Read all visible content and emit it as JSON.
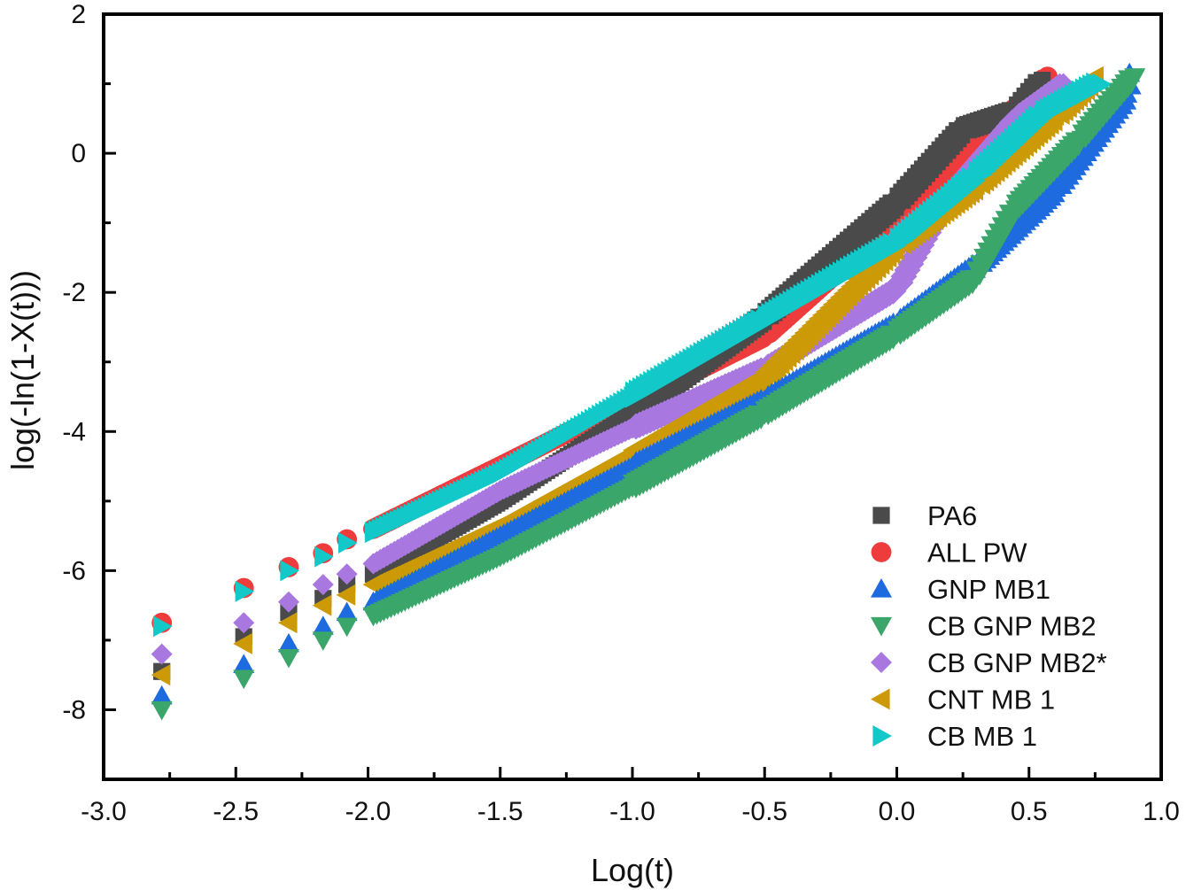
{
  "chart_data": {
    "type": "scatter",
    "title": "",
    "xlabel": "Log(t)",
    "ylabel": "log(-ln(1-X(t)))",
    "xlim": [
      -3.0,
      1.0
    ],
    "ylim": [
      -9.0,
      2.0
    ],
    "x_ticks": [
      -3.0,
      -2.5,
      -2.0,
      -1.5,
      -1.0,
      -0.5,
      0.0,
      0.5,
      1.0
    ],
    "x_tick_labels": [
      "-3.0",
      "-2.5",
      "-2.0",
      "-1.5",
      "-1.0",
      "-0.5",
      "0.0",
      "0.5",
      "1.0"
    ],
    "y_ticks": [
      2,
      0,
      -2,
      -4,
      -6,
      -8
    ],
    "y_tick_labels": [
      "2",
      "0",
      "-2",
      "-4",
      "-6",
      "-8"
    ],
    "grid": false,
    "legend_position": "bottom-right",
    "series": [
      {
        "name": "PA6",
        "marker": "square",
        "color": "#4a4a4a",
        "points": [
          [
            -2.78,
            -7.45
          ],
          [
            -2.47,
            -6.95
          ],
          [
            -2.3,
            -6.6
          ],
          [
            -2.17,
            -6.4
          ],
          [
            -2.08,
            -6.2
          ],
          [
            -1.98,
            -6.05
          ],
          [
            -1.5,
            -5.0
          ],
          [
            -1.0,
            -3.75
          ],
          [
            -0.5,
            -2.35
          ],
          [
            0.0,
            -0.7
          ],
          [
            0.25,
            0.35
          ],
          [
            0.45,
            0.6
          ],
          [
            0.55,
            1.05
          ]
        ]
      },
      {
        "name": "ALL PW",
        "marker": "circle",
        "color": "#ee3b3b",
        "points": [
          [
            -2.78,
            -6.75
          ],
          [
            -2.47,
            -6.25
          ],
          [
            -2.3,
            -5.95
          ],
          [
            -2.17,
            -5.75
          ],
          [
            -2.08,
            -5.55
          ],
          [
            -1.98,
            -5.4
          ],
          [
            -1.5,
            -4.5
          ],
          [
            -1.0,
            -3.55
          ],
          [
            -0.5,
            -2.6
          ],
          [
            0.0,
            -0.9
          ],
          [
            0.3,
            0.2
          ],
          [
            0.5,
            0.75
          ],
          [
            0.57,
            1.1
          ]
        ]
      },
      {
        "name": "GNP MB1",
        "marker": "triangle-up",
        "color": "#1e6be0",
        "points": [
          [
            -2.78,
            -7.8
          ],
          [
            -2.47,
            -7.35
          ],
          [
            -2.3,
            -7.05
          ],
          [
            -2.17,
            -6.8
          ],
          [
            -2.08,
            -6.6
          ],
          [
            -1.98,
            -6.45
          ],
          [
            -1.5,
            -5.5
          ],
          [
            -1.0,
            -4.5
          ],
          [
            -0.5,
            -3.55
          ],
          [
            0.0,
            -2.45
          ],
          [
            0.3,
            -1.6
          ],
          [
            0.6,
            -0.5
          ],
          [
            0.87,
            0.85
          ],
          [
            0.88,
            1.15
          ]
        ]
      },
      {
        "name": "CB GNP MB2",
        "marker": "triangle-down",
        "color": "#3aa66a",
        "points": [
          [
            -2.78,
            -8.0
          ],
          [
            -2.47,
            -7.55
          ],
          [
            -2.3,
            -7.25
          ],
          [
            -2.17,
            -7.0
          ],
          [
            -2.08,
            -6.8
          ],
          [
            -1.98,
            -6.65
          ],
          [
            -1.5,
            -5.8
          ],
          [
            -1.0,
            -4.8
          ],
          [
            -0.5,
            -3.75
          ],
          [
            0.0,
            -2.6
          ],
          [
            0.3,
            -1.8
          ],
          [
            0.45,
            -0.8
          ],
          [
            0.7,
            0.2
          ],
          [
            0.9,
            1.1
          ]
        ]
      },
      {
        "name": "CB GNP MB2*",
        "marker": "diamond",
        "color": "#a877e0",
        "points": [
          [
            -2.78,
            -7.2
          ],
          [
            -2.47,
            -6.75
          ],
          [
            -2.3,
            -6.45
          ],
          [
            -2.17,
            -6.2
          ],
          [
            -2.08,
            -6.05
          ],
          [
            -1.98,
            -5.9
          ],
          [
            -1.5,
            -4.85
          ],
          [
            -1.0,
            -3.95
          ],
          [
            -0.5,
            -3.1
          ],
          [
            0.0,
            -1.95
          ],
          [
            0.2,
            -0.6
          ],
          [
            0.45,
            0.5
          ],
          [
            0.63,
            1.0
          ]
        ]
      },
      {
        "name": "CNT MB 1",
        "marker": "triangle-left",
        "color": "#cc9a06",
        "points": [
          [
            -2.78,
            -7.5
          ],
          [
            -2.47,
            -7.05
          ],
          [
            -2.3,
            -6.75
          ],
          [
            -2.17,
            -6.5
          ],
          [
            -2.08,
            -6.35
          ],
          [
            -1.98,
            -6.2
          ],
          [
            -1.5,
            -5.35
          ],
          [
            -1.0,
            -4.3
          ],
          [
            -0.5,
            -3.2
          ],
          [
            0.0,
            -1.3
          ],
          [
            0.3,
            -0.45
          ],
          [
            0.6,
            0.55
          ],
          [
            0.75,
            1.1
          ]
        ]
      },
      {
        "name": "CB MB 1",
        "marker": "triangle-right",
        "color": "#12c8c8",
        "points": [
          [
            -2.78,
            -6.8
          ],
          [
            -2.47,
            -6.3
          ],
          [
            -2.3,
            -6.0
          ],
          [
            -2.17,
            -5.8
          ],
          [
            -2.08,
            -5.6
          ],
          [
            -1.98,
            -5.45
          ],
          [
            -1.5,
            -4.6
          ],
          [
            -1.0,
            -3.5
          ],
          [
            -0.5,
            -2.4
          ],
          [
            0.0,
            -1.3
          ],
          [
            0.3,
            -0.35
          ],
          [
            0.55,
            0.55
          ],
          [
            0.77,
            1.0
          ]
        ]
      }
    ]
  }
}
